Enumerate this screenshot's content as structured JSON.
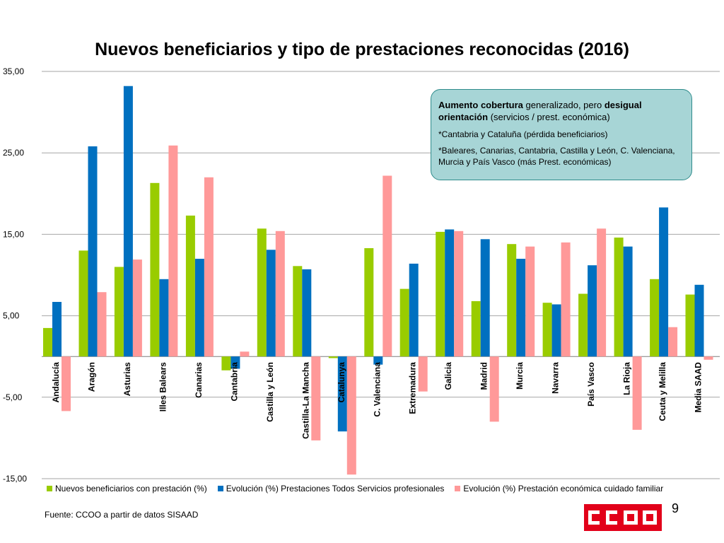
{
  "title": "Nuevos beneficiarios y tipo de prestaciones reconocidas (2016)",
  "callout": {
    "p1_bold1": "Aumento cobertura",
    "p1_text1": " generalizado, pero ",
    "p1_bold2": "desigual orientación",
    "p1_text2": " (servicios / prest. económica)",
    "p2": "*Cantabria y Cataluña (pérdida beneficiarios)",
    "p3": "*Baleares, Canarias, Cantabria, Castilla y León, C. Valenciana, Murcia y País Vasco (más Prest. económicas)"
  },
  "source": "Fuente: CCOO a partir de datos SISAAD",
  "slide_number": "9",
  "logo_text": "CCOO",
  "colors": {
    "green": "#99cc00",
    "blue": "#0070c0",
    "pink": "#ff9999",
    "logo_red": "#e2001a"
  },
  "chart_data": {
    "type": "bar",
    "title": "Nuevos beneficiarios y tipo de prestaciones reconocidas (2016)",
    "categories": [
      "Andalucía",
      "Aragón",
      "Asturias",
      "Illes Balears",
      "Canarias",
      "Cantabria",
      "Castilla y León",
      "Castilla-La Mancha",
      "Catalunya",
      "C. Valenciana",
      "Extremadura",
      "Galicia",
      "Madrid",
      "Murcia",
      "Navarra",
      "País Vasco",
      "La Rioja",
      "Ceuta y Melilla",
      "Media SAAD"
    ],
    "series": [
      {
        "name": "Nuevos beneficiarios con prestación (%)",
        "color": "#99cc00",
        "values": [
          3.5,
          13.0,
          11.0,
          21.3,
          17.3,
          -1.7,
          15.7,
          11.1,
          -0.2,
          13.3,
          8.3,
          15.3,
          6.8,
          13.8,
          6.6,
          7.7,
          14.6,
          9.5,
          7.6
        ]
      },
      {
        "name": "Evolución (%) Prestaciones Todos Servicios profesionales",
        "color": "#0070c0",
        "values": [
          6.7,
          25.8,
          33.2,
          9.5,
          12.0,
          -1.5,
          13.1,
          10.7,
          -9.2,
          -1.0,
          11.4,
          15.6,
          14.4,
          12.0,
          6.4,
          11.2,
          13.5,
          18.3,
          8.8
        ]
      },
      {
        "name": "Evolución (%) Prestación económica cuidado familiar",
        "color": "#ff9999",
        "values": [
          -6.7,
          7.9,
          11.9,
          25.9,
          22.0,
          0.6,
          15.4,
          -10.3,
          -14.5,
          22.2,
          -4.3,
          15.4,
          -8.0,
          13.5,
          14.0,
          15.7,
          -9.0,
          3.6,
          -0.4
        ]
      }
    ],
    "ylim": [
      -15,
      35
    ],
    "yticks": [
      -15,
      -5,
      5,
      15,
      25,
      35
    ],
    "ytick_labels": [
      "-15,00",
      "-5,00",
      "5,00",
      "15,00",
      "25,00",
      "35,00"
    ],
    "grid": true,
    "legend_position": "bottom"
  }
}
